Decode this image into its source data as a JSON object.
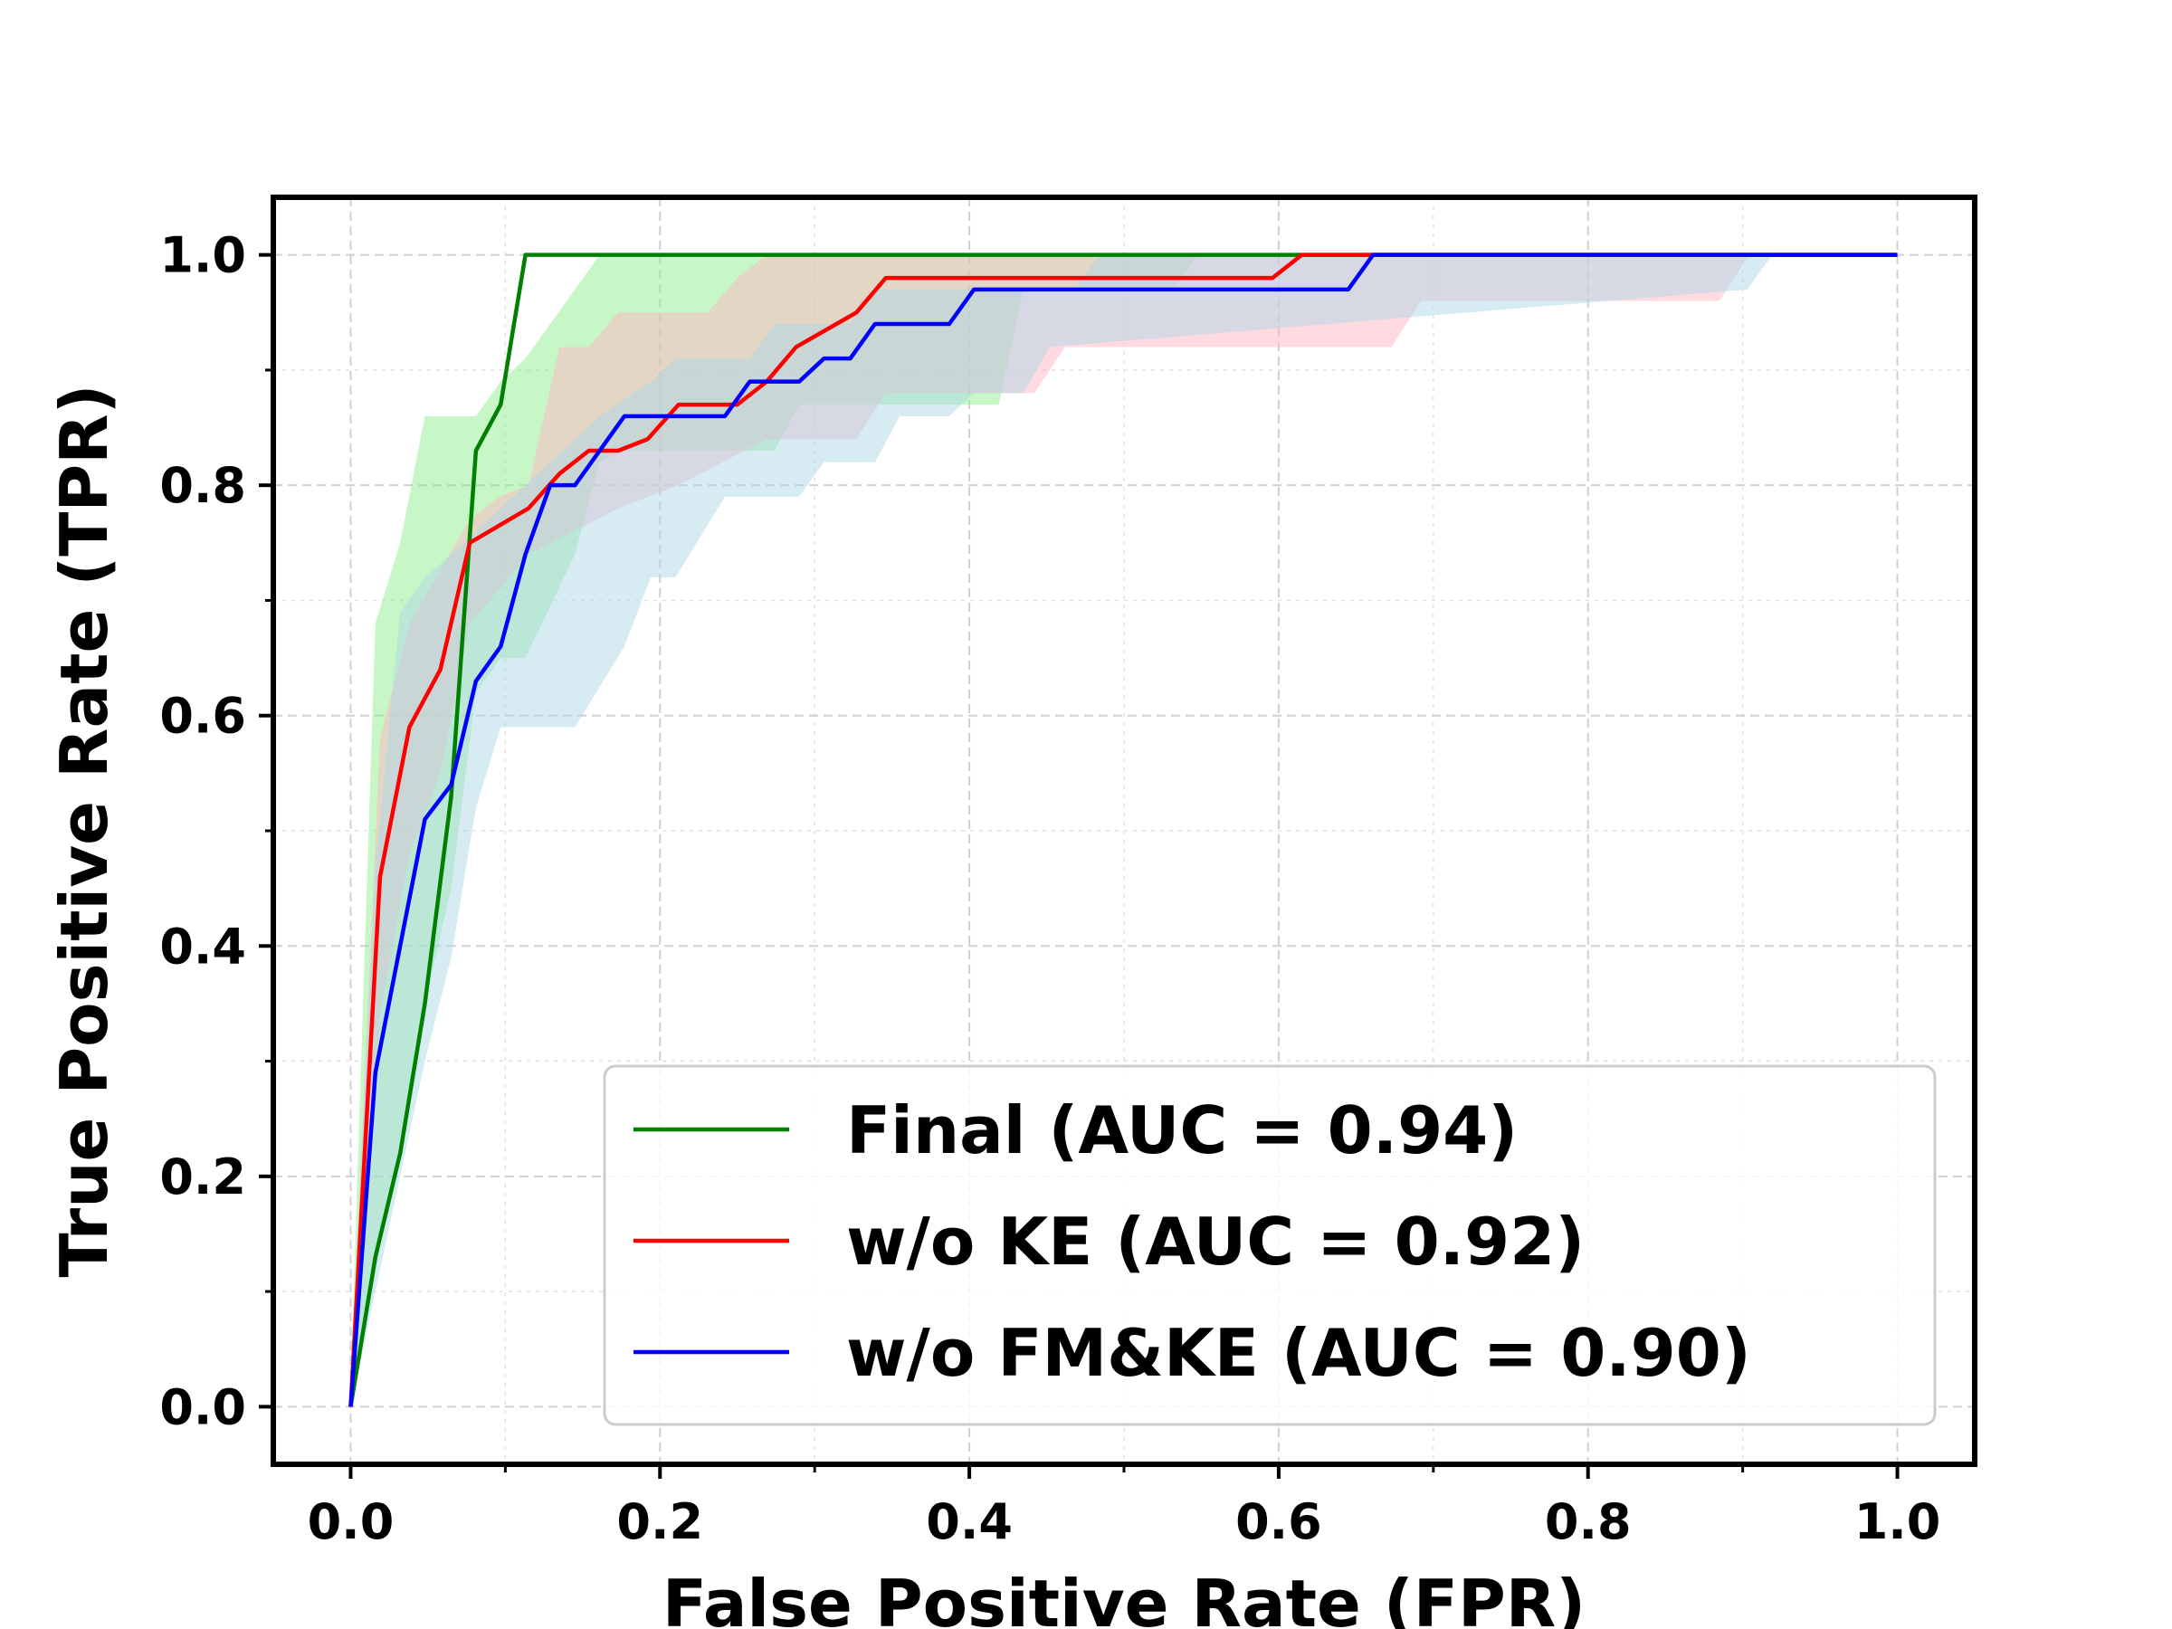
{
  "chart_data": {
    "type": "line",
    "title": "",
    "xlabel": "False Positive Rate (FPR)",
    "ylabel": "True Positive Rate (TPR)",
    "xlim": [
      -0.05,
      1.05
    ],
    "ylim": [
      -0.05,
      1.05
    ],
    "xticks": [
      0.0,
      0.2,
      0.4,
      0.6,
      0.8,
      1.0
    ],
    "xtick_labels": [
      "0.0",
      "0.2",
      "0.4",
      "0.6",
      "0.8",
      "1.0"
    ],
    "yticks": [
      0.0,
      0.2,
      0.4,
      0.6,
      0.8,
      1.0
    ],
    "ytick_labels": [
      "0.0",
      "0.2",
      "0.4",
      "0.6",
      "0.8",
      "1.0"
    ],
    "grid": true,
    "legend_position": "bottom-right",
    "series": [
      {
        "name": "Final (AUC = 0.94)",
        "color": "#008000",
        "band_color": "#90ee90",
        "points": [
          [
            0.0,
            0.0
          ],
          [
            0.016,
            0.13
          ],
          [
            0.032,
            0.22
          ],
          [
            0.048,
            0.35
          ],
          [
            0.065,
            0.53
          ],
          [
            0.081,
            0.83
          ],
          [
            0.097,
            0.87
          ],
          [
            0.113,
            1.0
          ],
          [
            1.0,
            1.0
          ]
        ],
        "upper": [
          [
            0.0,
            0.02
          ],
          [
            0.016,
            0.68
          ],
          [
            0.032,
            0.75
          ],
          [
            0.048,
            0.86
          ],
          [
            0.081,
            0.86
          ],
          [
            0.097,
            0.89
          ],
          [
            0.113,
            0.91
          ],
          [
            0.145,
            0.97
          ],
          [
            0.161,
            1.0
          ],
          [
            1.0,
            1.0
          ]
        ],
        "lower": [
          [
            0.0,
            0.0
          ],
          [
            0.048,
            0.35
          ],
          [
            0.065,
            0.45
          ],
          [
            0.081,
            0.62
          ],
          [
            0.097,
            0.65
          ],
          [
            0.113,
            0.65
          ],
          [
            0.145,
            0.74
          ],
          [
            0.161,
            0.82
          ],
          [
            0.177,
            0.83
          ],
          [
            0.274,
            0.83
          ],
          [
            0.29,
            0.87
          ],
          [
            0.419,
            0.87
          ],
          [
            0.435,
            0.97
          ],
          [
            0.532,
            0.97
          ],
          [
            0.548,
            1.0
          ],
          [
            1.0,
            1.0
          ]
        ]
      },
      {
        "name": "w/o KE (AUC = 0.92)",
        "color": "#ff0000",
        "band_color": "#ffb6c1",
        "points": [
          [
            0.0,
            0.0
          ],
          [
            0.019,
            0.46
          ],
          [
            0.038,
            0.59
          ],
          [
            0.058,
            0.64
          ],
          [
            0.077,
            0.75
          ],
          [
            0.115,
            0.78
          ],
          [
            0.135,
            0.81
          ],
          [
            0.154,
            0.83
          ],
          [
            0.173,
            0.83
          ],
          [
            0.192,
            0.84
          ],
          [
            0.212,
            0.87
          ],
          [
            0.25,
            0.87
          ],
          [
            0.269,
            0.89
          ],
          [
            0.288,
            0.92
          ],
          [
            0.327,
            0.95
          ],
          [
            0.346,
            0.98
          ],
          [
            0.596,
            0.98
          ],
          [
            0.615,
            1.0
          ],
          [
            1.0,
            1.0
          ]
        ],
        "upper": [
          [
            0.0,
            0.02
          ],
          [
            0.019,
            0.58
          ],
          [
            0.038,
            0.68
          ],
          [
            0.077,
            0.77
          ],
          [
            0.096,
            0.79
          ],
          [
            0.115,
            0.8
          ],
          [
            0.135,
            0.92
          ],
          [
            0.154,
            0.92
          ],
          [
            0.173,
            0.95
          ],
          [
            0.231,
            0.95
          ],
          [
            0.25,
            0.98
          ],
          [
            0.269,
            1.0
          ],
          [
            1.0,
            1.0
          ]
        ],
        "lower": [
          [
            0.0,
            0.0
          ],
          [
            0.019,
            0.34
          ],
          [
            0.038,
            0.48
          ],
          [
            0.058,
            0.55
          ],
          [
            0.077,
            0.68
          ],
          [
            0.115,
            0.74
          ],
          [
            0.173,
            0.78
          ],
          [
            0.212,
            0.8
          ],
          [
            0.269,
            0.84
          ],
          [
            0.327,
            0.84
          ],
          [
            0.346,
            0.88
          ],
          [
            0.442,
            0.88
          ],
          [
            0.462,
            0.92
          ],
          [
            0.577,
            0.92
          ],
          [
            0.596,
            0.92
          ],
          [
            0.673,
            0.92
          ],
          [
            0.692,
            0.96
          ],
          [
            0.885,
            0.96
          ],
          [
            0.904,
            1.0
          ],
          [
            1.0,
            1.0
          ]
        ]
      },
      {
        "name": "w/o FM&KE (AUC = 0.90)",
        "color": "#0000ff",
        "band_color": "#add8e6",
        "points": [
          [
            0.0,
            0.0
          ],
          [
            0.016,
            0.29
          ],
          [
            0.048,
            0.51
          ],
          [
            0.065,
            0.54
          ],
          [
            0.081,
            0.63
          ],
          [
            0.097,
            0.66
          ],
          [
            0.113,
            0.74
          ],
          [
            0.129,
            0.8
          ],
          [
            0.145,
            0.8
          ],
          [
            0.177,
            0.86
          ],
          [
            0.242,
            0.86
          ],
          [
            0.258,
            0.89
          ],
          [
            0.29,
            0.89
          ],
          [
            0.306,
            0.91
          ],
          [
            0.323,
            0.91
          ],
          [
            0.339,
            0.94
          ],
          [
            0.387,
            0.94
          ],
          [
            0.403,
            0.97
          ],
          [
            0.645,
            0.97
          ],
          [
            0.661,
            1.0
          ],
          [
            1.0,
            1.0
          ]
        ],
        "upper": [
          [
            0.0,
            0.02
          ],
          [
            0.016,
            0.47
          ],
          [
            0.032,
            0.69
          ],
          [
            0.048,
            0.72
          ],
          [
            0.065,
            0.74
          ],
          [
            0.113,
            0.8
          ],
          [
            0.129,
            0.82
          ],
          [
            0.161,
            0.86
          ],
          [
            0.194,
            0.89
          ],
          [
            0.21,
            0.91
          ],
          [
            0.258,
            0.91
          ],
          [
            0.274,
            0.94
          ],
          [
            0.323,
            0.94
          ],
          [
            0.339,
            0.97
          ],
          [
            0.468,
            0.97
          ],
          [
            0.484,
            1.0
          ],
          [
            1.0,
            1.0
          ]
        ],
        "lower": [
          [
            0.0,
            0.0
          ],
          [
            0.016,
            0.1
          ],
          [
            0.048,
            0.3
          ],
          [
            0.065,
            0.39
          ],
          [
            0.081,
            0.52
          ],
          [
            0.097,
            0.59
          ],
          [
            0.145,
            0.59
          ],
          [
            0.177,
            0.66
          ],
          [
            0.194,
            0.72
          ],
          [
            0.21,
            0.72
          ],
          [
            0.242,
            0.79
          ],
          [
            0.29,
            0.79
          ],
          [
            0.306,
            0.82
          ],
          [
            0.339,
            0.82
          ],
          [
            0.355,
            0.86
          ],
          [
            0.387,
            0.86
          ],
          [
            0.403,
            0.88
          ],
          [
            0.435,
            0.88
          ],
          [
            0.452,
            0.92
          ],
          [
            0.903,
            0.97
          ],
          [
            0.919,
            1.0
          ],
          [
            1.0,
            1.0
          ]
        ]
      }
    ]
  }
}
